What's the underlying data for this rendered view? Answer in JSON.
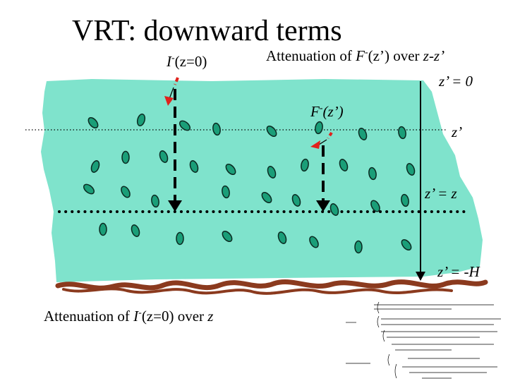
{
  "slide": {
    "title": "VRT: downward terms"
  },
  "labels": {
    "i_top": {
      "sym": "I",
      "sup": "-",
      "arg": "(z=0)"
    },
    "attenuation_f": {
      "pre": "Attenuation of ",
      "sym": "F",
      "sup": "-",
      "mid": "(z’) over ",
      "post": "z-z’"
    },
    "z_prime_zero": "z’ = 0",
    "z_prime": "z’",
    "f_mid": {
      "sym": "F",
      "sup": "-",
      "arg": "(z’)"
    },
    "z_prime_eq_z": "z’ = z",
    "z_prime_eq_minus_h": "z’ = -H",
    "attenuation_i": {
      "pre": "Attenuation of ",
      "sym": "I",
      "sup": "-",
      "mid": "(z=0) over ",
      "post": "z"
    }
  },
  "colors": {
    "medium": "#7fe3cc",
    "particle": "#1a9e78",
    "ground": "#8b3a1e",
    "red_arrow": "#e0221c"
  }
}
